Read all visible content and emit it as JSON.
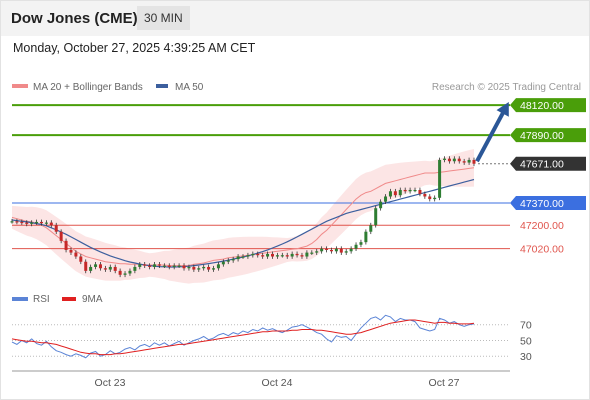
{
  "header": {
    "title": "Dow Jones (CME)",
    "interval": "30 MIN"
  },
  "datetime": "Monday, October 27, 2025 4:39:25 AM CET",
  "credit": "Research © 2025 Trading Central",
  "colors": {
    "green_level": "#4a9e0a",
    "blue_level": "#3b6fe0",
    "red_level": "#e0554d",
    "bollinger": "#f08a8a",
    "ma50": "#3c5f9e",
    "arrow": "#2b5797",
    "candle_up": "#2e7d32",
    "candle_down": "#c62828",
    "rsi": "#5b84d6",
    "rsi_ma": "#e02020"
  },
  "chart_data": [
    {
      "type": "candlestick",
      "title": "",
      "legend": [
        {
          "name": "MA 20 + Bollinger Bands",
          "color": "#f08a8a"
        },
        {
          "name": "MA 50",
          "color": "#3c5f9e"
        }
      ],
      "ylim": [
        46780,
        48190
      ],
      "x_ticks": [
        "Oct 23",
        "Oct 24",
        "Oct 27"
      ],
      "levels": [
        {
          "value": 48120,
          "label": "48120.00",
          "kind": "resistance-target",
          "color": "#4a9e0a"
        },
        {
          "value": 47890,
          "label": "47890.00",
          "kind": "resistance",
          "color": "#4a9e0a"
        },
        {
          "value": 47671,
          "label": "47671.00",
          "kind": "last-price",
          "color": "#333333"
        },
        {
          "value": 47370,
          "label": "47370.00",
          "kind": "pivot",
          "color": "#3b6fe0"
        },
        {
          "value": 47200,
          "label": "47200.00",
          "kind": "support",
          "color": "#e0554d"
        },
        {
          "value": 47020,
          "label": "47020.00",
          "kind": "support",
          "color": "#e0554d"
        }
      ],
      "close": [
        47230,
        47225,
        47220,
        47210,
        47220,
        47225,
        47215,
        47220,
        47200,
        47150,
        47080,
        47010,
        46990,
        46960,
        46920,
        46850,
        46880,
        46900,
        46870,
        46860,
        46880,
        46850,
        46820,
        46830,
        46850,
        46880,
        46900,
        46890,
        46880,
        46900,
        46890,
        46890,
        46880,
        46890,
        46890,
        46870,
        46880,
        46860,
        46870,
        46880,
        46860,
        46870,
        46900,
        46920,
        46930,
        46940,
        46960,
        46960,
        46970,
        46980,
        46970,
        46960,
        46980,
        46960,
        46970,
        46970,
        46960,
        46980,
        46970,
        46960,
        46990,
        46990,
        47000,
        47020,
        47010,
        47000,
        47020,
        46990,
        47000,
        47020,
        47050,
        47070,
        47150,
        47200,
        47330,
        47380,
        47420,
        47460,
        47430,
        47470,
        47460,
        47470,
        47470,
        47440,
        47420,
        47400,
        47410,
        47700,
        47710,
        47690,
        47710,
        47690,
        47680,
        47700,
        47671
      ],
      "ma20": [
        47260,
        47250,
        47240,
        47230,
        47225,
        47215,
        47200,
        47180,
        47150,
        47120,
        47090,
        47060,
        47030,
        47000,
        46980,
        46960,
        46950,
        46940,
        46930,
        46920,
        46915,
        46910,
        46905,
        46905,
        46900,
        46900,
        46900,
        46895,
        46895,
        46895,
        46895,
        46895,
        46890,
        46890,
        46890,
        46890,
        46890,
        46900,
        46905,
        46910,
        46920,
        46930,
        46935,
        46940,
        46950,
        46955,
        46960,
        46965,
        46970,
        46975,
        46980,
        46985,
        46990,
        46995,
        47000,
        47005,
        47010,
        47015,
        47020,
        47030,
        47040,
        47060,
        47090,
        47130,
        47160,
        47200,
        47240,
        47280,
        47320,
        47360,
        47400,
        47430,
        47450,
        47460,
        47480,
        47500,
        47520,
        47530,
        47540,
        47550,
        47560,
        47570,
        47580,
        47590,
        47600,
        47600,
        47600,
        47605,
        47610,
        47615,
        47620,
        47625,
        47630,
        47635,
        47640
      ],
      "ma50": [
        47240,
        47235,
        47230,
        47225,
        47220,
        47212,
        47205,
        47195,
        47180,
        47165,
        47148,
        47130,
        47110,
        47090,
        47070,
        47050,
        47030,
        47012,
        46995,
        46980,
        46965,
        46952,
        46940,
        46928,
        46918,
        46910,
        46902,
        46895,
        46890,
        46886,
        46883,
        46881,
        46880,
        46880,
        46881,
        46883,
        46886,
        46890,
        46895,
        46900,
        46906,
        46912,
        46918,
        46925,
        46932,
        46940,
        46948,
        46956,
        46965,
        46975,
        46986,
        46998,
        47011,
        47025,
        47040,
        47056,
        47073,
        47091,
        47110,
        47130,
        47150,
        47170,
        47190,
        47210,
        47230,
        47245,
        47260,
        47275,
        47290,
        47300,
        47310,
        47320,
        47330,
        47340,
        47350,
        47360,
        47370,
        47380,
        47390,
        47400,
        47410,
        47420,
        47430,
        47440,
        47450,
        47460,
        47470,
        47480,
        47490,
        47500,
        47510,
        47520,
        47530,
        47540,
        47550
      ]
    },
    {
      "type": "line",
      "legend": [
        {
          "name": "RSI",
          "color": "#5b84d6"
        },
        {
          "name": "9MA",
          "color": "#e02020"
        }
      ],
      "y_ticks": [
        70,
        50,
        30
      ],
      "ylim": [
        15,
        90
      ],
      "series": [
        {
          "name": "RSI",
          "values": [
            48,
            45,
            50,
            47,
            52,
            46,
            44,
            49,
            42,
            37,
            35,
            32,
            30,
            33,
            31,
            28,
            34,
            36,
            30,
            32,
            37,
            33,
            35,
            39,
            41,
            38,
            43,
            45,
            42,
            47,
            44,
            47,
            43,
            46,
            49,
            44,
            47,
            50,
            52,
            55,
            51,
            53,
            57,
            59,
            56,
            60,
            58,
            62,
            60,
            64,
            62,
            66,
            63,
            65,
            62,
            60,
            63,
            67,
            68,
            70,
            67,
            64,
            60,
            58,
            52,
            48,
            56,
            54,
            55,
            50,
            58,
            66,
            72,
            78,
            80,
            76,
            82,
            80,
            74,
            78,
            76,
            76,
            74,
            66,
            64,
            62,
            64,
            78,
            76,
            72,
            74,
            70,
            68,
            70,
            71
          ]
        },
        {
          "name": "9MA",
          "values": [
            52,
            51,
            50,
            49,
            49,
            48,
            47,
            47,
            46,
            45,
            43,
            41,
            39,
            37,
            35,
            34,
            33,
            33,
            32,
            32,
            32,
            33,
            33,
            34,
            35,
            36,
            37,
            38,
            39,
            40,
            41,
            42,
            43,
            44,
            45,
            45,
            46,
            47,
            48,
            49,
            50,
            51,
            52,
            53,
            54,
            55,
            56,
            57,
            58,
            59,
            60,
            61,
            61,
            62,
            62,
            62,
            62,
            63,
            63,
            64,
            64,
            64,
            63,
            63,
            62,
            61,
            60,
            59,
            58,
            58,
            59,
            60,
            62,
            64,
            66,
            68,
            70,
            72,
            73,
            74,
            75,
            76,
            76,
            75,
            74,
            73,
            72,
            73,
            73,
            72,
            72,
            71,
            71,
            71,
            72
          ]
        }
      ]
    }
  ]
}
